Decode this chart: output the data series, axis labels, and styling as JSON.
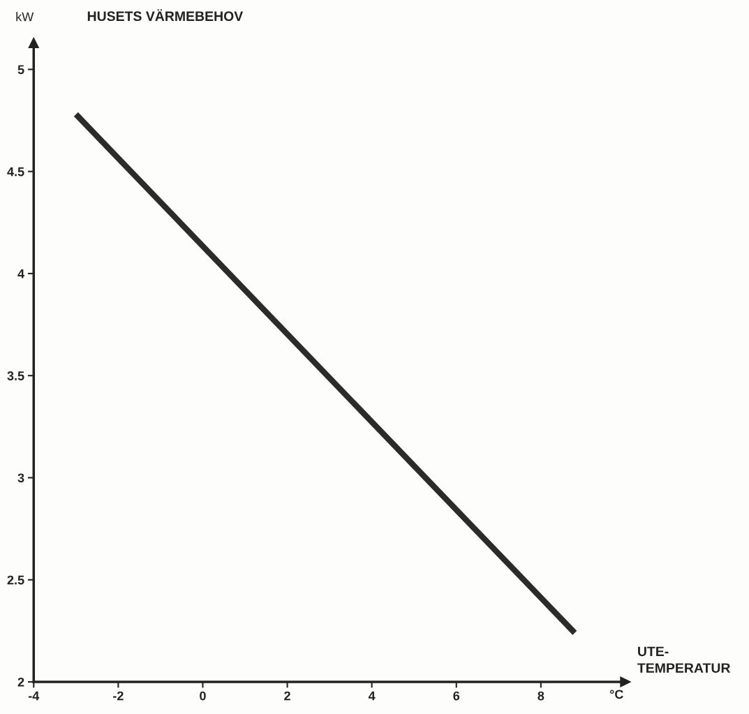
{
  "chart_data": {
    "type": "line",
    "title": "HUSETS VÄRMEBEHOV",
    "ylabel": "kW",
    "xlabel": "UTE-\nTEMPERATUR",
    "annotations": [
      "°C"
    ],
    "series": [
      {
        "color": "#2b2b2b",
        "x": [
          -3,
          8.8
        ],
        "values": [
          4.78,
          2.24
        ]
      }
    ],
    "xlim": [
      -4,
      10
    ],
    "xticks": [
      -4,
      -2,
      0,
      2,
      4,
      6,
      8
    ],
    "ylim": [
      2,
      5.13
    ],
    "yticks": [
      2,
      2.5,
      3,
      3.5,
      4,
      4.5,
      5
    ],
    "grid": false,
    "legend": false,
    "marker": "none",
    "line_style": "solid"
  }
}
